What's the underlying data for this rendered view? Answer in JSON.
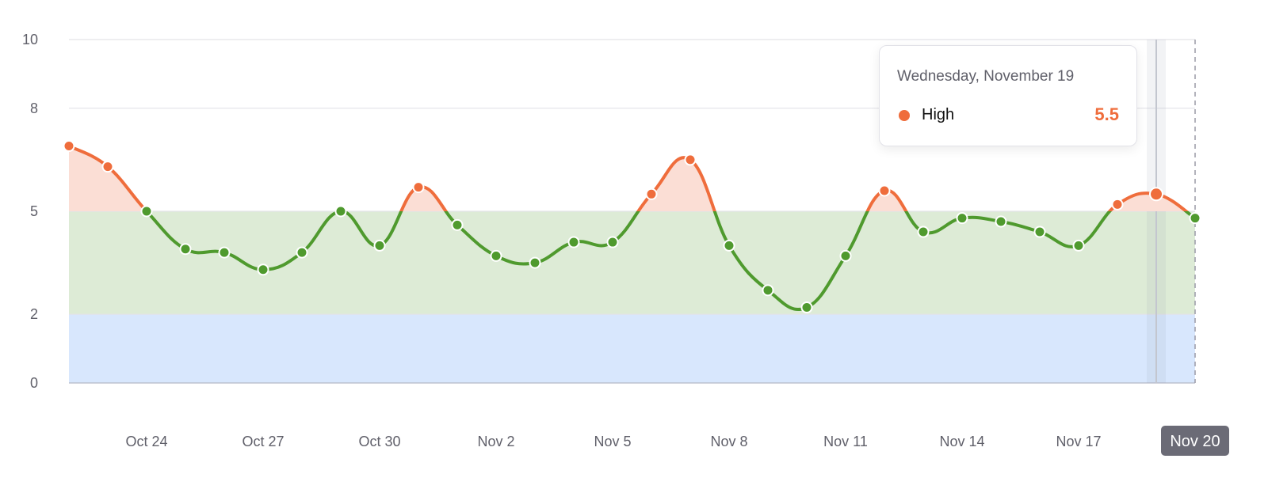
{
  "chart_data": {
    "type": "line",
    "title": "",
    "xlabel": "",
    "ylabel": "",
    "ylim": [
      0,
      10
    ],
    "yticks": [
      0,
      2,
      5,
      8,
      10
    ],
    "x": [
      "Oct 22",
      "Oct 23",
      "Oct 24",
      "Oct 25",
      "Oct 26",
      "Oct 27",
      "Oct 28",
      "Oct 29",
      "Oct 30",
      "Oct 31",
      "Nov 1",
      "Nov 2",
      "Nov 3",
      "Nov 4",
      "Nov 5",
      "Nov 6",
      "Nov 7",
      "Nov 8",
      "Nov 9",
      "Nov 10",
      "Nov 11",
      "Nov 12",
      "Nov 13",
      "Nov 14",
      "Nov 15",
      "Nov 16",
      "Nov 17",
      "Nov 18",
      "Nov 19",
      "Nov 20"
    ],
    "xtick_labels": [
      "Oct 24",
      "Oct 27",
      "Oct 30",
      "Nov 2",
      "Nov 5",
      "Nov 8",
      "Nov 11",
      "Nov 14",
      "Nov 17",
      "Nov 20"
    ],
    "series": [
      {
        "name": "High",
        "values": [
          6.9,
          6.3,
          5.0,
          3.9,
          3.8,
          3.3,
          3.8,
          5.0,
          4.0,
          5.7,
          4.6,
          3.7,
          3.5,
          4.1,
          4.1,
          5.5,
          6.5,
          4.0,
          2.7,
          2.2,
          3.7,
          5.6,
          4.4,
          4.8,
          4.7,
          4.4,
          4.0,
          5.2,
          5.5,
          4.8
        ]
      }
    ],
    "bands": [
      {
        "from": 0,
        "to": 2,
        "color": "#d8e7fd"
      },
      {
        "from": 2,
        "to": 5,
        "color": "#ddebd6"
      },
      {
        "from": 5,
        "to": 10,
        "color": "#fbded5"
      }
    ],
    "threshold": 5,
    "grid": true,
    "highlighted_index": 28,
    "active_x_label": "Nov 20"
  },
  "colors": {
    "high": "#ef6d3c",
    "normal": "#4f9a2e",
    "grid": "#e3e3e8"
  },
  "tooltip": {
    "date": "Wednesday, November 19",
    "series_label": "High",
    "value": "5.5"
  }
}
